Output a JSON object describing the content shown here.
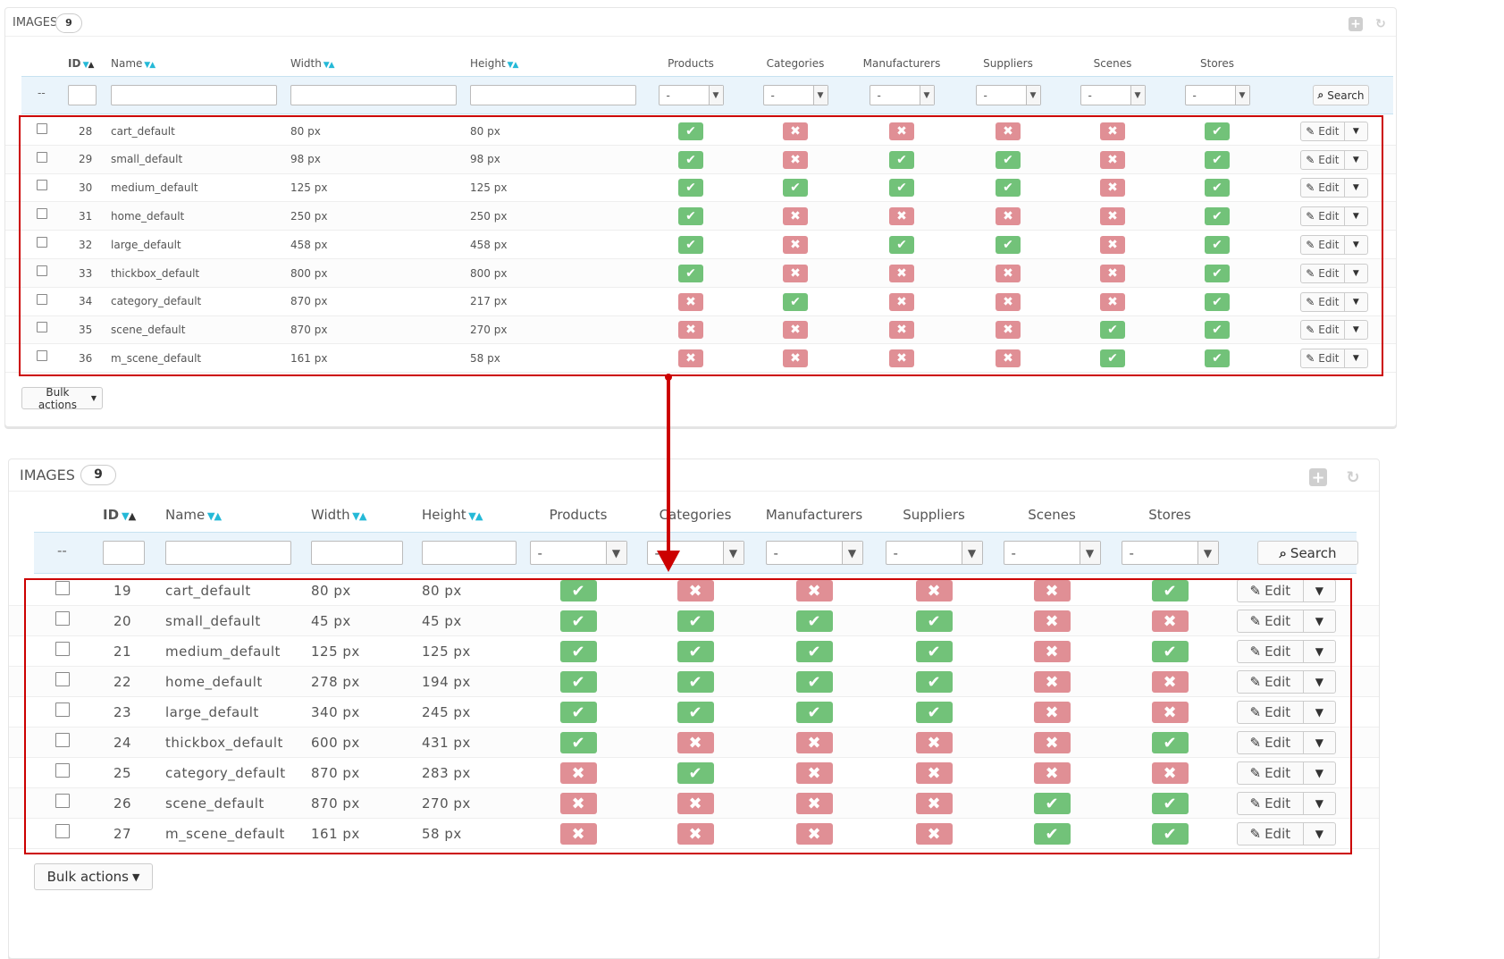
{
  "panels": [
    {
      "title": "IMAGES",
      "count": "9",
      "columns": {
        "id": "ID",
        "name": "Name",
        "width": "Width",
        "height": "Height",
        "products": "Products",
        "categories": "Categories",
        "manufacturers": "Manufacturers",
        "suppliers": "Suppliers",
        "scenes": "Scenes",
        "stores": "Stores"
      },
      "filter_dash": "--",
      "select_value": "-",
      "search_label": "Search",
      "edit_label": "Edit",
      "bulk_label": "Bulk actions",
      "rows": [
        {
          "id": "28",
          "name": "cart_default",
          "width": "80 px",
          "height": "80 px",
          "flags": [
            true,
            false,
            false,
            false,
            false,
            true
          ]
        },
        {
          "id": "29",
          "name": "small_default",
          "width": "98 px",
          "height": "98 px",
          "flags": [
            true,
            false,
            true,
            true,
            false,
            true
          ]
        },
        {
          "id": "30",
          "name": "medium_default",
          "width": "125 px",
          "height": "125 px",
          "flags": [
            true,
            true,
            true,
            true,
            false,
            true
          ]
        },
        {
          "id": "31",
          "name": "home_default",
          "width": "250 px",
          "height": "250 px",
          "flags": [
            true,
            false,
            false,
            false,
            false,
            true
          ]
        },
        {
          "id": "32",
          "name": "large_default",
          "width": "458 px",
          "height": "458 px",
          "flags": [
            true,
            false,
            true,
            true,
            false,
            true
          ]
        },
        {
          "id": "33",
          "name": "thickbox_default",
          "width": "800 px",
          "height": "800 px",
          "flags": [
            true,
            false,
            false,
            false,
            false,
            true
          ]
        },
        {
          "id": "34",
          "name": "category_default",
          "width": "870 px",
          "height": "217 px",
          "flags": [
            false,
            true,
            false,
            false,
            false,
            true
          ]
        },
        {
          "id": "35",
          "name": "scene_default",
          "width": "870 px",
          "height": "270 px",
          "flags": [
            false,
            false,
            false,
            false,
            true,
            true
          ]
        },
        {
          "id": "36",
          "name": "m_scene_default",
          "width": "161 px",
          "height": "58 px",
          "flags": [
            false,
            false,
            false,
            false,
            true,
            true
          ]
        }
      ]
    },
    {
      "title": "IMAGES",
      "count": "9",
      "columns": {
        "id": "ID",
        "name": "Name",
        "width": "Width",
        "height": "Height",
        "products": "Products",
        "categories": "Categories",
        "manufacturers": "Manufacturers",
        "suppliers": "Suppliers",
        "scenes": "Scenes",
        "stores": "Stores"
      },
      "filter_dash": "--",
      "select_value": "-",
      "search_label": "Search",
      "edit_label": "Edit",
      "bulk_label": "Bulk actions",
      "rows": [
        {
          "id": "19",
          "name": "cart_default",
          "width": "80 px",
          "height": "80 px",
          "flags": [
            true,
            false,
            false,
            false,
            false,
            true
          ]
        },
        {
          "id": "20",
          "name": "small_default",
          "width": "45 px",
          "height": "45 px",
          "flags": [
            true,
            true,
            true,
            true,
            false,
            false
          ]
        },
        {
          "id": "21",
          "name": "medium_default",
          "width": "125 px",
          "height": "125 px",
          "flags": [
            true,
            true,
            true,
            true,
            false,
            true
          ]
        },
        {
          "id": "22",
          "name": "home_default",
          "width": "278 px",
          "height": "194 px",
          "flags": [
            true,
            true,
            true,
            true,
            false,
            false
          ]
        },
        {
          "id": "23",
          "name": "large_default",
          "width": "340 px",
          "height": "245 px",
          "flags": [
            true,
            true,
            true,
            true,
            false,
            false
          ]
        },
        {
          "id": "24",
          "name": "thickbox_default",
          "width": "600 px",
          "height": "431 px",
          "flags": [
            true,
            false,
            false,
            false,
            false,
            true
          ]
        },
        {
          "id": "25",
          "name": "category_default",
          "width": "870 px",
          "height": "283 px",
          "flags": [
            false,
            true,
            false,
            false,
            false,
            false
          ]
        },
        {
          "id": "26",
          "name": "scene_default",
          "width": "870 px",
          "height": "270 px",
          "flags": [
            false,
            false,
            false,
            false,
            true,
            true
          ]
        },
        {
          "id": "27",
          "name": "m_scene_default",
          "width": "161 px",
          "height": "58 px",
          "flags": [
            false,
            false,
            false,
            false,
            true,
            true
          ]
        }
      ]
    }
  ],
  "icons": {
    "check": "check-icon",
    "cross": "cross-icon",
    "pencil": "pencil-icon",
    "search": "search-icon",
    "caret": "caret-down-icon",
    "add": "add-icon",
    "refresh": "refresh-icon"
  },
  "colors": {
    "accent": "#25b9d7",
    "yes": "#72c279",
    "no": "#e08f95",
    "highlight": "#cc0000"
  }
}
